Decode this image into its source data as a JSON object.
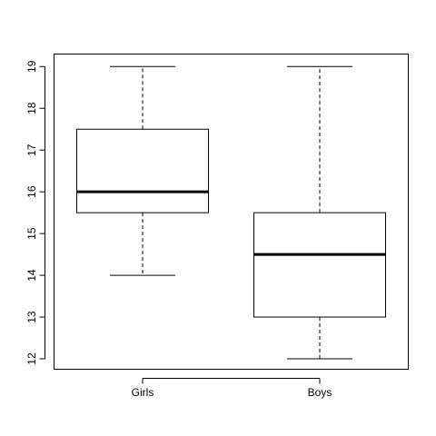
{
  "chart_data": {
    "type": "box",
    "categories": [
      "Girls",
      "Boys"
    ],
    "series": [
      {
        "category": "Girls",
        "min": 14,
        "q1": 15.5,
        "median": 16,
        "q3": 17.5,
        "max": 19
      },
      {
        "category": "Boys",
        "min": 12,
        "q1": 13,
        "median": 14.5,
        "q3": 15.5,
        "max": 19
      }
    ],
    "yticks": [
      12,
      13,
      14,
      15,
      16,
      17,
      18,
      19
    ],
    "ylim": [
      11.75,
      19.3
    ],
    "title": "",
    "xlabel": "",
    "ylabel": "",
    "grid": false,
    "colors": {
      "stroke": "#000000",
      "fill": "#ffffff",
      "background": "#ffffff"
    }
  }
}
